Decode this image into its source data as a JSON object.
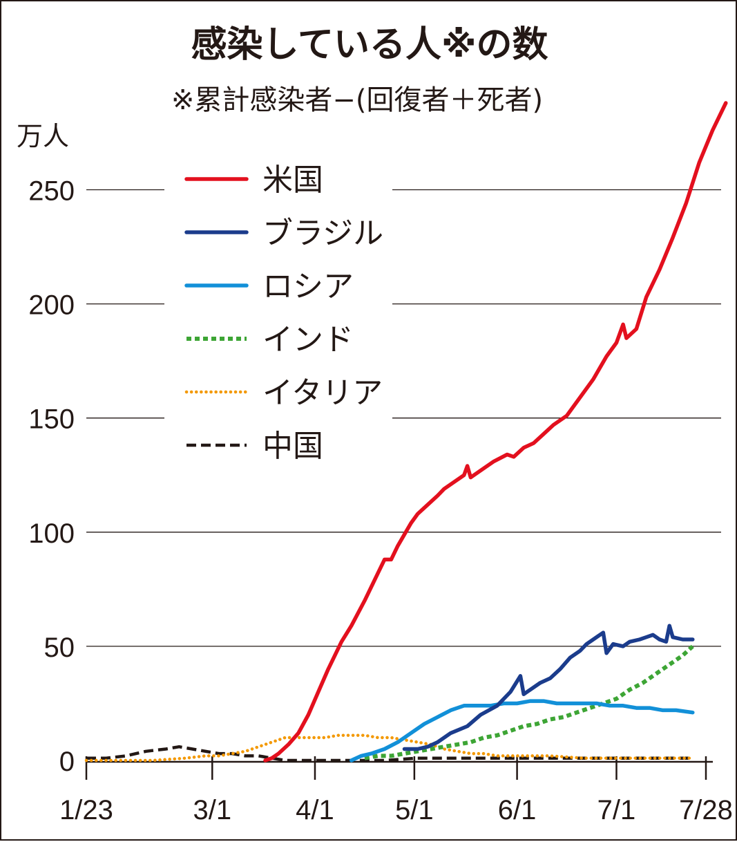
{
  "chart_data": {
    "type": "line",
    "title": "感染している人※の数",
    "subtitle": "※累計感染者−(回復者＋死者)",
    "ylabel": "万人",
    "xlabel": "",
    "ylim": [
      0,
      280
    ],
    "xlim": [
      0,
      187
    ],
    "yticks": [
      0,
      50,
      100,
      150,
      200,
      250
    ],
    "ytick_labels": [
      "0",
      "50",
      "100",
      "150",
      "200",
      "250"
    ],
    "xticks": [
      0,
      38,
      69,
      99,
      130,
      160,
      187
    ],
    "xtick_labels": [
      "1/23",
      "3/1",
      "4/1",
      "5/1",
      "6/1",
      "7/1",
      "7/28"
    ],
    "x_unit": "days since 1/23",
    "grid": "horizontal",
    "legend_placement": "upper-left",
    "series": [
      {
        "name": "米国",
        "color": "#e3101e",
        "dash": "solid",
        "points": [
          [
            54,
            0
          ],
          [
            56,
            1
          ],
          [
            58,
            3
          ],
          [
            61,
            7
          ],
          [
            64,
            12
          ],
          [
            67,
            20
          ],
          [
            70,
            30
          ],
          [
            73,
            40
          ],
          [
            77,
            52
          ],
          [
            80,
            59
          ],
          [
            84,
            70
          ],
          [
            88,
            82
          ],
          [
            90,
            88
          ],
          [
            92,
            88
          ],
          [
            94,
            94
          ],
          [
            96,
            99
          ],
          [
            98,
            104
          ],
          [
            100,
            108
          ],
          [
            103,
            112
          ],
          [
            106,
            116
          ],
          [
            108,
            119
          ],
          [
            111,
            122
          ],
          [
            114,
            125
          ],
          [
            115,
            129
          ],
          [
            116,
            124
          ],
          [
            119,
            127
          ],
          [
            123,
            131
          ],
          [
            127,
            134
          ],
          [
            129,
            133
          ],
          [
            132,
            137
          ],
          [
            135,
            139
          ],
          [
            138,
            143
          ],
          [
            141,
            147
          ],
          [
            145,
            151
          ],
          [
            149,
            159
          ],
          [
            153,
            167
          ],
          [
            157,
            177
          ],
          [
            160,
            183
          ],
          [
            162,
            191
          ],
          [
            163,
            185
          ],
          [
            166,
            189
          ],
          [
            169,
            203
          ],
          [
            173,
            215
          ],
          [
            177,
            229
          ],
          [
            181,
            244
          ],
          [
            185,
            262
          ],
          [
            189,
            276
          ],
          [
            193,
            288
          ]
        ]
      },
      {
        "name": "ブラジル",
        "color": "#1b3c8c",
        "dash": "solid",
        "points": [
          [
            96,
            5
          ],
          [
            100,
            5
          ],
          [
            103,
            6
          ],
          [
            106,
            8
          ],
          [
            110,
            12
          ],
          [
            115,
            15
          ],
          [
            119,
            20
          ],
          [
            124,
            24
          ],
          [
            128,
            30
          ],
          [
            131,
            37
          ],
          [
            132,
            29
          ],
          [
            134,
            31
          ],
          [
            137,
            34
          ],
          [
            140,
            36
          ],
          [
            143,
            40
          ],
          [
            146,
            45
          ],
          [
            149,
            48
          ],
          [
            151,
            51
          ],
          [
            154,
            54
          ],
          [
            156,
            56
          ],
          [
            157,
            47
          ],
          [
            159,
            51
          ],
          [
            162,
            50
          ],
          [
            164,
            52
          ],
          [
            167,
            53
          ],
          [
            169,
            54
          ],
          [
            171,
            55
          ],
          [
            173,
            53
          ],
          [
            175,
            52
          ],
          [
            176,
            59
          ],
          [
            177,
            54
          ],
          [
            180,
            53
          ],
          [
            183,
            53
          ]
        ]
      },
      {
        "name": "ロシア",
        "color": "#1290d8",
        "dash": "solid",
        "points": [
          [
            80,
            0
          ],
          [
            83,
            2
          ],
          [
            86,
            3
          ],
          [
            90,
            5
          ],
          [
            94,
            8
          ],
          [
            98,
            12
          ],
          [
            102,
            16
          ],
          [
            106,
            19
          ],
          [
            110,
            22
          ],
          [
            114,
            24
          ],
          [
            118,
            24
          ],
          [
            122,
            24
          ],
          [
            126,
            25
          ],
          [
            130,
            25
          ],
          [
            134,
            26
          ],
          [
            138,
            26
          ],
          [
            142,
            25
          ],
          [
            146,
            25
          ],
          [
            150,
            25
          ],
          [
            154,
            25
          ],
          [
            158,
            24
          ],
          [
            162,
            24
          ],
          [
            166,
            23
          ],
          [
            170,
            23
          ],
          [
            174,
            22
          ],
          [
            178,
            22
          ],
          [
            183,
            21
          ]
        ]
      },
      {
        "name": "インド",
        "color": "#3da535",
        "dash": "dotted-thick",
        "points": [
          [
            84,
            1
          ],
          [
            88,
            2
          ],
          [
            92,
            2
          ],
          [
            96,
            3
          ],
          [
            100,
            4
          ],
          [
            104,
            5
          ],
          [
            108,
            6
          ],
          [
            112,
            7
          ],
          [
            116,
            8
          ],
          [
            120,
            10
          ],
          [
            124,
            11
          ],
          [
            128,
            13
          ],
          [
            132,
            15
          ],
          [
            136,
            16
          ],
          [
            140,
            18
          ],
          [
            144,
            19
          ],
          [
            148,
            21
          ],
          [
            152,
            23
          ],
          [
            156,
            25
          ],
          [
            160,
            27
          ],
          [
            164,
            31
          ],
          [
            168,
            34
          ],
          [
            172,
            38
          ],
          [
            176,
            42
          ],
          [
            180,
            46
          ],
          [
            183,
            50
          ]
        ]
      },
      {
        "name": "イタリア",
        "color": "#f39800",
        "dash": "dotted-fine",
        "points": [
          [
            0,
            0
          ],
          [
            10,
            0
          ],
          [
            20,
            0
          ],
          [
            30,
            1
          ],
          [
            36,
            2
          ],
          [
            40,
            2
          ],
          [
            44,
            3
          ],
          [
            48,
            4
          ],
          [
            52,
            6
          ],
          [
            56,
            8
          ],
          [
            60,
            10
          ],
          [
            64,
            10
          ],
          [
            68,
            10
          ],
          [
            72,
            10
          ],
          [
            76,
            11
          ],
          [
            80,
            11
          ],
          [
            84,
            11
          ],
          [
            88,
            10
          ],
          [
            92,
            10
          ],
          [
            96,
            9
          ],
          [
            100,
            8
          ],
          [
            104,
            7
          ],
          [
            108,
            5
          ],
          [
            112,
            4
          ],
          [
            116,
            3
          ],
          [
            120,
            3
          ],
          [
            124,
            2
          ],
          [
            130,
            2
          ],
          [
            140,
            2
          ],
          [
            150,
            1
          ],
          [
            160,
            1
          ],
          [
            170,
            1
          ],
          [
            180,
            1
          ],
          [
            183,
            1
          ]
        ]
      },
      {
        "name": "中国",
        "color": "#231815",
        "dash": "dashed",
        "points": [
          [
            0,
            1
          ],
          [
            6,
            1
          ],
          [
            12,
            2
          ],
          [
            18,
            4
          ],
          [
            24,
            5
          ],
          [
            28,
            6
          ],
          [
            32,
            5
          ],
          [
            36,
            4
          ],
          [
            40,
            3
          ],
          [
            44,
            3
          ],
          [
            48,
            2
          ],
          [
            52,
            2
          ],
          [
            56,
            1
          ],
          [
            60,
            0
          ],
          [
            64,
            0
          ],
          [
            70,
            0
          ],
          [
            80,
            0
          ],
          [
            90,
            0
          ],
          [
            100,
            1
          ],
          [
            110,
            1
          ],
          [
            120,
            1
          ],
          [
            130,
            1
          ],
          [
            140,
            1
          ],
          [
            150,
            1
          ],
          [
            160,
            1
          ],
          [
            170,
            1
          ],
          [
            180,
            1
          ],
          [
            183,
            1
          ]
        ]
      }
    ]
  }
}
